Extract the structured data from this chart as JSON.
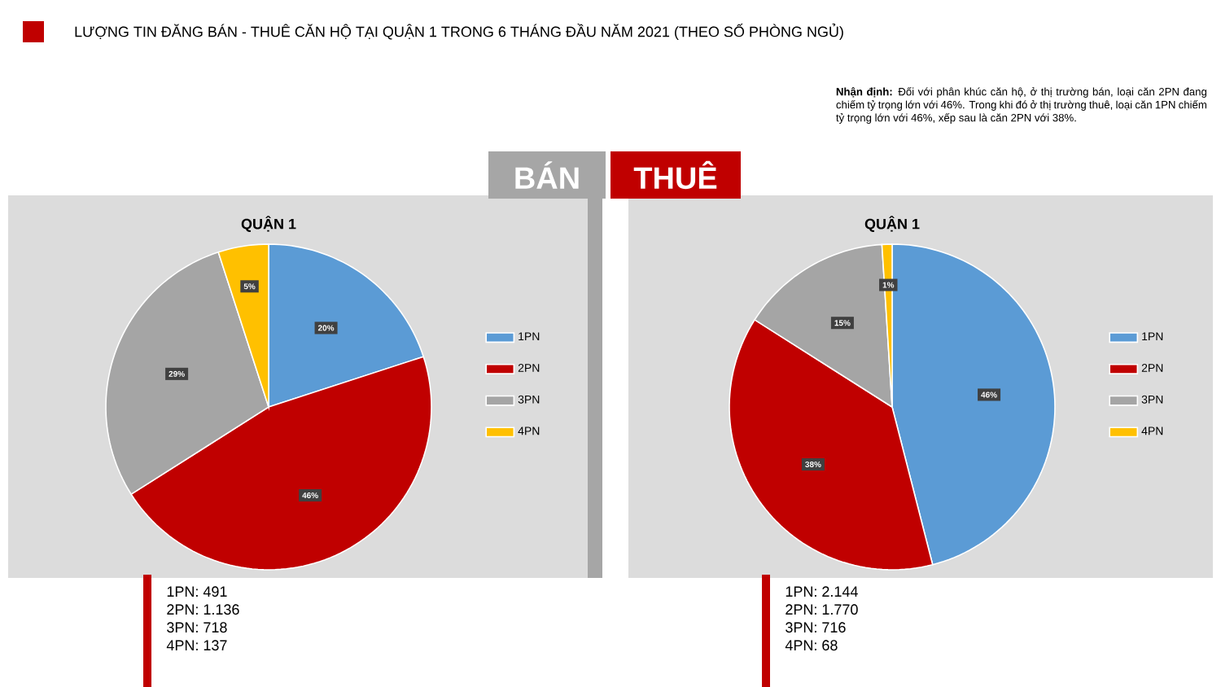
{
  "chart_data": [
    {
      "type": "pie",
      "title": "QUẬN 1",
      "subtitle": "BÁN",
      "categories": [
        "1PN",
        "2PN",
        "3PN",
        "4PN"
      ],
      "values": [
        20,
        46,
        29,
        5
      ],
      "value_labels": [
        "20%",
        "46%",
        "29%",
        "5%"
      ],
      "colors": [
        "#5b9bd5",
        "#c00000",
        "#a5a5a5",
        "#ffc000"
      ],
      "legend": "right",
      "annotations": [
        "LƯỢNG TIN ĐĂNG BÁN - THUÊ CĂN HỘ TẠI QUẬN 1 TRONG 6 THÁNG ĐẦU NĂM 2021 (THEO SỐ PHÒNG NGỦ)",
        "**Nhận định:** Đối với phân khúc căn hộ, ở thị trường bán, loại căn 2PN đang chiếm tỷ trọng lớn với 46%. Trong khi đó ở thị trường thuê, loại căn 1PN chiếm tỷ trọng lớn với 46%, xếp sau là căn 2PN với 38%.",
        "1PN: 491",
        "2PN: 1.136",
        "3PN: 718",
        "4PN: 137"
      ]
    },
    {
      "type": "pie",
      "title": "QUẬN 1",
      "subtitle": "THUÊ",
      "categories": [
        "1PN",
        "2PN",
        "3PN",
        "4PN"
      ],
      "values": [
        46,
        38,
        15,
        1
      ],
      "value_labels": [
        "46%",
        "38%",
        "15%",
        "1%"
      ],
      "colors": [
        "#5b9bd5",
        "#c00000",
        "#a5a5a5",
        "#ffc000"
      ],
      "legend": "right",
      "annotations": [
        "1PN: 2.144",
        "2PN: 1.770",
        "3PN: 716",
        "4PN: 68"
      ]
    }
  ]
}
